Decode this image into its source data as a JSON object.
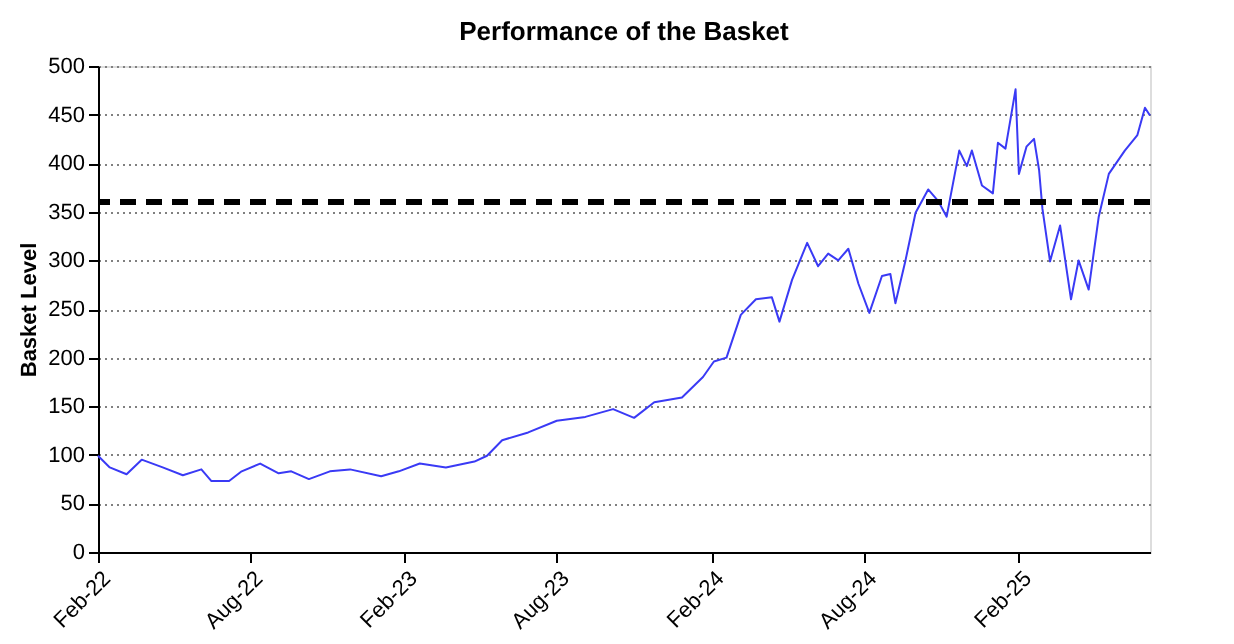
{
  "chart_data": {
    "type": "line",
    "title": "Performance of the Basket",
    "ylabel": "Basket Level",
    "x": [
      "2022-02-01",
      "2022-02-15",
      "2022-03-07",
      "2022-03-25",
      "2022-04-19",
      "2022-05-13",
      "2022-06-04",
      "2022-06-16",
      "2022-07-07",
      "2022-07-22",
      "2022-08-13",
      "2022-09-04",
      "2022-09-19",
      "2022-10-10",
      "2022-11-04",
      "2022-11-28",
      "2023-01-04",
      "2023-01-25",
      "2023-02-19",
      "2023-03-22",
      "2023-04-25",
      "2023-05-10",
      "2023-05-28",
      "2023-06-28",
      "2023-08-01",
      "2023-09-04",
      "2023-10-07",
      "2023-11-01",
      "2023-11-25",
      "2023-12-28",
      "2024-01-22",
      "2024-02-04",
      "2024-02-19",
      "2024-03-07",
      "2024-03-25",
      "2024-04-13",
      "2024-04-22",
      "2024-05-07",
      "2024-05-25",
      "2024-06-07",
      "2024-06-19",
      "2024-07-01",
      "2024-07-13",
      "2024-07-25",
      "2024-08-07",
      "2024-08-22",
      "2024-09-01",
      "2024-09-07",
      "2024-09-19",
      "2024-10-01",
      "2024-10-16",
      "2024-10-28",
      "2024-11-07",
      "2024-11-22",
      "2024-12-01",
      "2024-12-07",
      "2024-12-19",
      "2025-01-01",
      "2025-01-07",
      "2025-01-16",
      "2025-01-28",
      "2025-02-01",
      "2025-02-10",
      "2025-02-19",
      "2025-02-25",
      "2025-03-01",
      "2025-03-10",
      "2025-03-22",
      "2025-04-04",
      "2025-04-13",
      "2025-04-25",
      "2025-05-07",
      "2025-05-19",
      "2025-06-07",
      "2025-06-22",
      "2025-07-01",
      "2025-07-07"
    ],
    "series": [
      {
        "color": "#3a3af5",
        "values": [
          99,
          87,
          80,
          95,
          87,
          79,
          85,
          73,
          73,
          83,
          91,
          81,
          83,
          75,
          83,
          85,
          78,
          83,
          91,
          87,
          93,
          99,
          115,
          123,
          135,
          139,
          147,
          138,
          154,
          159,
          180,
          196,
          200,
          244,
          260,
          262,
          237,
          280,
          318,
          294,
          307,
          300,
          312,
          276,
          246,
          284,
          286,
          256,
          300,
          349,
          373,
          361,
          345,
          413,
          397,
          413,
          377,
          369,
          421,
          415,
          476,
          389,
          417,
          425,
          393,
          353,
          299,
          336,
          260,
          300,
          270,
          345,
          389,
          413,
          429,
          457,
          449
        ]
      }
    ],
    "xlim": [
      "2022-02-01",
      "2025-07-07"
    ],
    "xticks": [
      {
        "value": "2022-02-01",
        "label": "Feb-22"
      },
      {
        "value": "2022-08-01",
        "label": "Aug-22"
      },
      {
        "value": "2023-02-01",
        "label": "Feb-23"
      },
      {
        "value": "2023-08-01",
        "label": "Aug-23"
      },
      {
        "value": "2024-02-01",
        "label": "Feb-24"
      },
      {
        "value": "2024-08-01",
        "label": "Aug-24"
      },
      {
        "value": "2025-02-01",
        "label": "Feb-25"
      }
    ],
    "ylim": [
      0,
      500
    ],
    "yticks": [
      0,
      50,
      100,
      150,
      200,
      250,
      300,
      350,
      400,
      450,
      500
    ],
    "ref_lines": [
      {
        "axis": "y",
        "value": 360,
        "color": "#000000",
        "line_style": "dashed"
      }
    ],
    "grid": "y",
    "marker": "none",
    "line_style": "solid"
  }
}
